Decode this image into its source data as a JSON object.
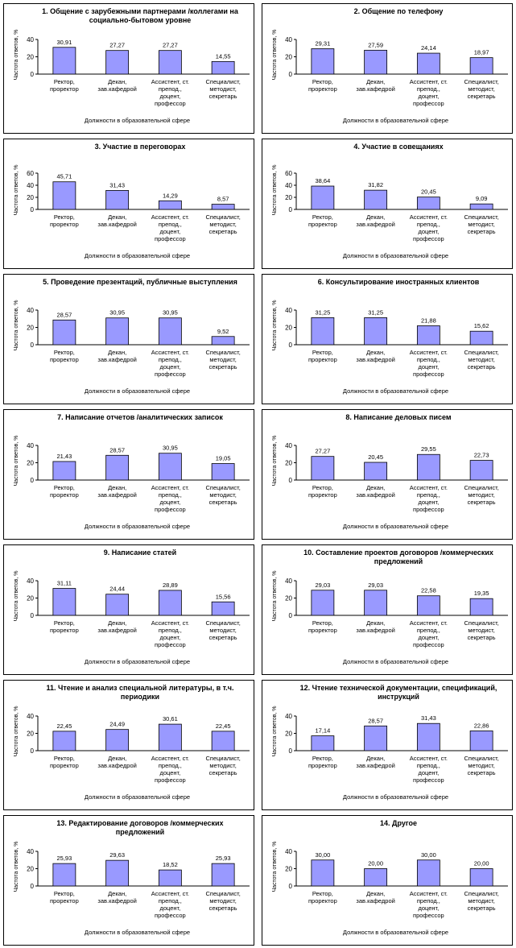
{
  "chart_data": [
    {
      "type": "bar",
      "title": "1. Общение с зарубежными партнерами /коллегами на социально-бытовом уровне",
      "categories": [
        "Ректор, проректор",
        "Декан, зав.кафедрой",
        "Ассистент, ст. препод., доцент, профессор",
        "Специалист, методист, секретарь"
      ],
      "values": [
        30.91,
        27.27,
        27.27,
        14.55
      ],
      "value_labels": [
        "30,91",
        "27,27",
        "27,27",
        "14,55"
      ],
      "xlabel": "Должности в образовательной сфере",
      "ylabel": "Частота ответов, %",
      "ylim": [
        0,
        40
      ],
      "yticks": [
        0,
        20,
        40
      ],
      "grid": false,
      "bar_color": "#9999ff"
    },
    {
      "type": "bar",
      "title": "2. Общение по телефону",
      "categories": [
        "Ректор, проректор",
        "Декан, зав.кафедрой",
        "Ассистент, ст. препод., доцент, профессор",
        "Специалист, методист, секретарь"
      ],
      "values": [
        29.31,
        27.59,
        24.14,
        18.97
      ],
      "value_labels": [
        "29,31",
        "27,59",
        "24,14",
        "18,97"
      ],
      "xlabel": "Должности в образовательной сфере",
      "ylabel": "Частота ответов, %",
      "ylim": [
        0,
        40
      ],
      "yticks": [
        0,
        20,
        40
      ],
      "grid": false,
      "bar_color": "#9999ff"
    },
    {
      "type": "bar",
      "title": "3. Участие в переговорах",
      "categories": [
        "Ректор, проректор",
        "Декан, зав.кафедрой",
        "Ассистент, ст. препод., доцент, профессор",
        "Специалист, методист, секретарь"
      ],
      "values": [
        45.71,
        31.43,
        14.29,
        8.57
      ],
      "value_labels": [
        "45,71",
        "31,43",
        "14,29",
        "8,57"
      ],
      "xlabel": "Должности в образовательной сфере",
      "ylabel": "Частота ответов, %",
      "ylim": [
        0,
        60
      ],
      "yticks": [
        0,
        20,
        40,
        60
      ],
      "grid": false,
      "bar_color": "#9999ff"
    },
    {
      "type": "bar",
      "title": "4. Участие в совещаниях",
      "categories": [
        "Ректор, проректор",
        "Декан, зав.кафедрой",
        "Ассистент, ст. препод., доцент, профессор",
        "Специалист, методист, секретарь"
      ],
      "values": [
        38.64,
        31.82,
        20.45,
        9.09
      ],
      "value_labels": [
        "38,64",
        "31,82",
        "20,45",
        "9,09"
      ],
      "xlabel": "Должности в образовательной сфере",
      "ylabel": "Частота ответов, %",
      "ylim": [
        0,
        60
      ],
      "yticks": [
        0,
        20,
        40,
        60
      ],
      "grid": false,
      "bar_color": "#9999ff"
    },
    {
      "type": "bar",
      "title": "5. Проведение презентаций, публичные выступления",
      "categories": [
        "Ректор, проректор",
        "Декан, зав.кафедрой",
        "Ассистент, ст. препод., доцент, профессор",
        "Специалист, методист, секретарь"
      ],
      "values": [
        28.57,
        30.95,
        30.95,
        9.52
      ],
      "value_labels": [
        "28,57",
        "30,95",
        "30,95",
        "9,52"
      ],
      "xlabel": "Должности в образовательной сфере",
      "ylabel": "Частота ответов, %",
      "ylim": [
        0,
        40
      ],
      "yticks": [
        0,
        20,
        40
      ],
      "grid": false,
      "bar_color": "#9999ff"
    },
    {
      "type": "bar",
      "title": "6. Консультирование иностранных клиентов",
      "categories": [
        "Ректор, проректор",
        "Декан, зав.кафедрой",
        "Ассистент, ст. препод., доцент, профессор",
        "Специалист, методист, секретарь"
      ],
      "values": [
        31.25,
        31.25,
        21.88,
        15.62
      ],
      "value_labels": [
        "31,25",
        "31,25",
        "21,88",
        "15,62"
      ],
      "xlabel": "Должности в образовательной сфере",
      "ylabel": "Частота ответов, %",
      "ylim": [
        0,
        40
      ],
      "yticks": [
        0,
        20,
        40
      ],
      "grid": false,
      "bar_color": "#9999ff"
    },
    {
      "type": "bar",
      "title": "7. Написание отчетов /аналитических записок",
      "categories": [
        "Ректор, проректор",
        "Декан, зав.кафедрой",
        "Ассистент, ст. препод., доцент, профессор",
        "Специалист, методист, секретарь"
      ],
      "values": [
        21.43,
        28.57,
        30.95,
        19.05
      ],
      "value_labels": [
        "21,43",
        "28,57",
        "30,95",
        "19,05"
      ],
      "xlabel": "Должности в образовательной сфере",
      "ylabel": "Частота ответов, %",
      "ylim": [
        0,
        40
      ],
      "yticks": [
        0,
        20,
        40
      ],
      "grid": false,
      "bar_color": "#9999ff"
    },
    {
      "type": "bar",
      "title": "8. Написание деловых писем",
      "categories": [
        "Ректор, проректор",
        "Декан, зав.кафедрой",
        "Ассистент, ст. препод., доцент, профессор",
        "Специалист, методист, секретарь"
      ],
      "values": [
        27.27,
        20.45,
        29.55,
        22.73
      ],
      "value_labels": [
        "27,27",
        "20,45",
        "29,55",
        "22,73"
      ],
      "xlabel": "Должности в образовательной сфере",
      "ylabel": "Частота ответов, %",
      "ylim": [
        0,
        40
      ],
      "yticks": [
        0,
        20,
        40
      ],
      "grid": false,
      "bar_color": "#9999ff"
    },
    {
      "type": "bar",
      "title": "9. Написание статей",
      "categories": [
        "Ректор, проректор",
        "Декан, зав.кафедрой",
        "Ассистент, ст. препод., доцент, профессор",
        "Специалист, методист, секретарь"
      ],
      "values": [
        31.11,
        24.44,
        28.89,
        15.56
      ],
      "value_labels": [
        "31,11",
        "24,44",
        "28,89",
        "15,56"
      ],
      "xlabel": "Должности в образовательной сфере",
      "ylabel": "Частота ответов, %",
      "ylim": [
        0,
        40
      ],
      "yticks": [
        0,
        20,
        40
      ],
      "grid": false,
      "bar_color": "#9999ff"
    },
    {
      "type": "bar",
      "title": "10. Составление проектов договоров /коммерческих предложений",
      "categories": [
        "Ректор, проректор",
        "Декан, зав.кафедрой",
        "Ассистент, ст. препод., доцент, профессор",
        "Специалист, методист, секретарь"
      ],
      "values": [
        29.03,
        29.03,
        22.58,
        19.35
      ],
      "value_labels": [
        "29,03",
        "29,03",
        "22,58",
        "19,35"
      ],
      "xlabel": "Должности в образовательной сфере",
      "ylabel": "Частота ответов, %",
      "ylim": [
        0,
        40
      ],
      "yticks": [
        0,
        20,
        40
      ],
      "grid": false,
      "bar_color": "#9999ff"
    },
    {
      "type": "bar",
      "title": "11. Чтение и анализ специальной литературы, в т.ч. периодики",
      "categories": [
        "Ректор, проректор",
        "Декан, зав.кафедрой",
        "Ассистент, ст. препод., доцент, профессор",
        "Специалист, методист, секретарь"
      ],
      "values": [
        22.45,
        24.49,
        30.61,
        22.45
      ],
      "value_labels": [
        "22,45",
        "24,49",
        "30,61",
        "22,45"
      ],
      "xlabel": "Должности в образовательной сфере",
      "ylabel": "Частота ответов, %",
      "ylim": [
        0,
        40
      ],
      "yticks": [
        0,
        20,
        40
      ],
      "grid": false,
      "bar_color": "#9999ff"
    },
    {
      "type": "bar",
      "title": "12. Чтение технической документации, спецификаций, инструкций",
      "categories": [
        "Ректор, проректор",
        "Декан, зав.кафедрой",
        "Ассистент, ст. препод., доцент, профессор",
        "Специалист, методист, секретарь"
      ],
      "values": [
        17.14,
        28.57,
        31.43,
        22.86
      ],
      "value_labels": [
        "17,14",
        "28,57",
        "31,43",
        "22,86"
      ],
      "xlabel": "Должности в образовательной сфере",
      "ylabel": "Частота ответов, %",
      "ylim": [
        0,
        40
      ],
      "yticks": [
        0,
        20,
        40
      ],
      "grid": false,
      "bar_color": "#9999ff"
    },
    {
      "type": "bar",
      "title": "13. Редактирование договоров /коммерческих предложений",
      "categories": [
        "Ректор, проректор",
        "Декан, зав.кафедрой",
        "Ассистент, ст. препод., доцент, профессор",
        "Специалист, методист, секретарь"
      ],
      "values": [
        25.93,
        29.63,
        18.52,
        25.93
      ],
      "value_labels": [
        "25,93",
        "29,63",
        "18,52",
        "25,93"
      ],
      "xlabel": "Должности в образовательной сфере",
      "ylabel": "Частота ответов, %",
      "ylim": [
        0,
        40
      ],
      "yticks": [
        0,
        20,
        40
      ],
      "grid": false,
      "bar_color": "#9999ff"
    },
    {
      "type": "bar",
      "title": "14. Другое",
      "categories": [
        "Ректор, проректор",
        "Декан, зав.кафедрой",
        "Ассистент, ст. препод., доцент, профессор",
        "Специалист, методист, секретарь"
      ],
      "values": [
        30.0,
        20.0,
        30.0,
        20.0
      ],
      "value_labels": [
        "30,00",
        "20,00",
        "30,00",
        "20,00"
      ],
      "xlabel": "Должности в образовательной сфере",
      "ylabel": "Частота ответов, %",
      "ylim": [
        0,
        40
      ],
      "yticks": [
        0,
        20,
        40
      ],
      "grid": false,
      "bar_color": "#9999ff"
    }
  ]
}
